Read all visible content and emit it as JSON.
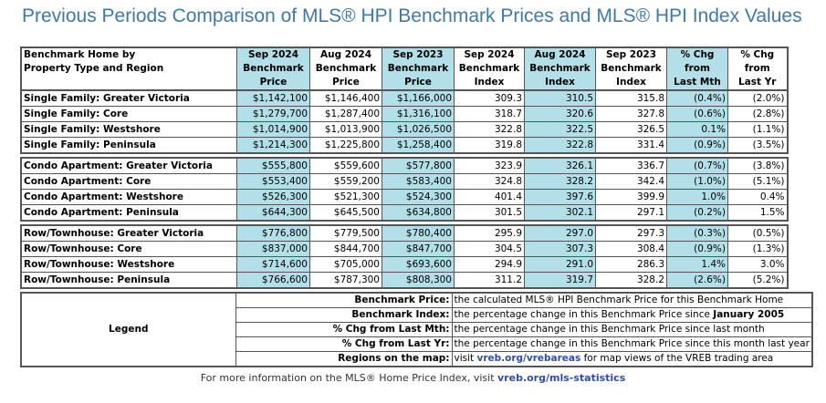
{
  "title": "Previous Periods Comparison of MLS® HPI Benchmark Prices and MLS® HPI Index Values",
  "headers": [
    [
      "Benchmark Home by",
      "Property Type and Region"
    ],
    [
      "Sep 2024",
      "Benchmark",
      "Price"
    ],
    [
      "Aug 2024",
      "Benchmark",
      "Price"
    ],
    [
      "Sep 2023",
      "Benchmark",
      "Price"
    ],
    [
      "Sep 2024",
      "Benchmark",
      "Index"
    ],
    [
      "Aug 2024",
      "Benchmark",
      "Index"
    ],
    [
      "Sep 2023",
      "Benchmark",
      "Index"
    ],
    [
      "% Chg",
      "from",
      "Last Mth"
    ],
    [
      "% Chg",
      "from",
      "Last Yr"
    ]
  ],
  "highlight_color": "#b2dfe8",
  "groups": [
    [
      [
        "Single Family: Greater Victoria",
        "$1,142,100",
        "$1,146,400",
        "$1,166,000",
        "309.3",
        "310.5",
        "315.8",
        "(0.4%)",
        "(2.0%)"
      ],
      [
        "Single Family: Core",
        "$1,279,700",
        "$1,287,400",
        "$1,316,100",
        "318.7",
        "320.6",
        "327.8",
        "(0.6%)",
        "(2.8%)"
      ],
      [
        "Single Family: Westshore",
        "$1,014,900",
        "$1,013,900",
        "$1,026,500",
        "322.8",
        "322.5",
        "326.5",
        "0.1%",
        "(1.1%)"
      ],
      [
        "Single Family: Peninsula",
        "$1,214,300",
        "$1,225,800",
        "$1,258,400",
        "319.8",
        "322.8",
        "331.4",
        "(0.9%)",
        "(3.5%)"
      ]
    ],
    [
      [
        "Condo Apartment: Greater Victoria",
        "$555,800",
        "$559,600",
        "$577,800",
        "323.9",
        "326.1",
        "336.7",
        "(0.7%)",
        "(3.8%)"
      ],
      [
        "Condo Apartment: Core",
        "$553,400",
        "$559,200",
        "$583,400",
        "324.8",
        "328.2",
        "342.4",
        "(1.0%)",
        "(5.1%)"
      ],
      [
        "Condo Apartment: Westshore",
        "$526,300",
        "$521,300",
        "$524,300",
        "401.4",
        "397.6",
        "399.9",
        "1.0%",
        "0.4%"
      ],
      [
        "Condo Apartment: Peninsula",
        "$644,300",
        "$645,500",
        "$634,800",
        "301.5",
        "302.1",
        "297.1",
        "(0.2%)",
        "1.5%"
      ]
    ],
    [
      [
        "Row/Townhouse: Greater Victoria",
        "$776,800",
        "$779,500",
        "$780,400",
        "295.9",
        "297.0",
        "297.3",
        "(0.3%)",
        "(0.5%)"
      ],
      [
        "Row/Townhouse: Core",
        "$837,000",
        "$844,700",
        "$847,700",
        "304.5",
        "307.3",
        "308.4",
        "(0.9%)",
        "(1.3%)"
      ],
      [
        "Row/Townhouse: Westshore",
        "$714,600",
        "$705,000",
        "$693,600",
        "294.9",
        "291.0",
        "286.3",
        "1.4%",
        "3.0%"
      ],
      [
        "Row/Townhouse: Peninsula",
        "$766,600",
        "$787,300",
        "$808,300",
        "311.2",
        "319.7",
        "328.2",
        "(2.6%)",
        "(5.2%)"
      ]
    ]
  ],
  "legend": {
    "title": "Legend",
    "rows": [
      {
        "term": "Benchmark Price:",
        "def": "the calculated MLS® HPI Benchmark Price for this Benchmark Home"
      },
      {
        "term": "Benchmark Index:",
        "def": "the percentage change in this Benchmark Price since ",
        "bold": "January 2005"
      },
      {
        "term": "% Chg from Last Mth:",
        "def": "the percentage change in this Benchmark Price since last month"
      },
      {
        "term": "% Chg from Last Yr:",
        "def": "the percentage change in this Benchmark Price since this month last year"
      },
      {
        "term": "Regions on the map:",
        "pre": "visit ",
        "link": "vreb.org/vrebareas",
        "def": " for map views of the VREB trading area"
      }
    ]
  },
  "footer": {
    "text": "For more information on the MLS® Home Price Index, visit ",
    "link": "vreb.org/mls-statistics"
  }
}
